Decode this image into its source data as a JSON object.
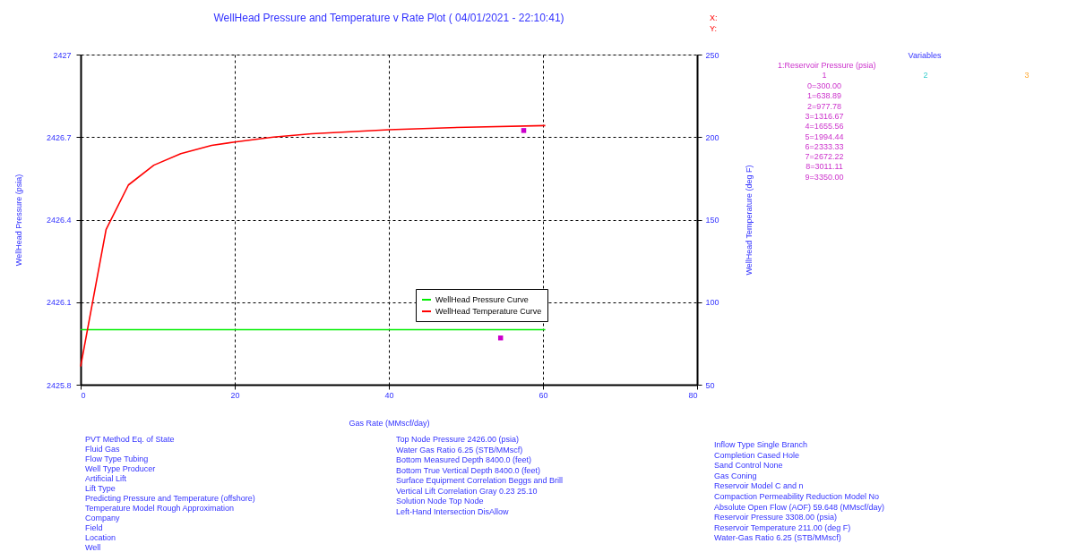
{
  "chart_data": {
    "type": "line",
    "title": "WellHead Pressure and Temperature v Rate Plot ( 04/01/2021 - 22:10:41)",
    "xlabel": "Gas Rate  (MMscf/day)",
    "ylabel": "WellHead Pressure  (psia)",
    "y2label": "WellHead Temperature  (deg F)",
    "xlim": [
      0,
      80
    ],
    "xticks": [
      0,
      20,
      40,
      60,
      80
    ],
    "ylim": [
      2425.8,
      2427
    ],
    "yticks": [
      2425.8,
      2426.1,
      2426.4,
      2426.7,
      2427
    ],
    "y2lim": [
      50,
      250
    ],
    "y2ticks": [
      50,
      100,
      150,
      200,
      250
    ],
    "grid": true,
    "legend": "bottom right",
    "line_style": "solid",
    "series": [
      {
        "name": "WellHead Pressure Curve",
        "color": "#00ee00",
        "type": "line",
        "x": [
          0,
          60.3
        ],
        "values": [
          2426.0,
          2426.0
        ]
      },
      {
        "name": "WellHead Temperature Curve",
        "color": "#ff0000",
        "type": "line",
        "axis": "y2",
        "x": [
          0,
          3.3,
          6.2,
          9.5,
          13,
          17,
          20,
          25,
          30,
          40,
          50,
          60.3
        ],
        "values": [
          61,
          144,
          171,
          183,
          190,
          195,
          197,
          200,
          202,
          204.5,
          206,
          207
        ]
      },
      {
        "color": "#cc00cc",
        "type": "scatter",
        "marker": "square",
        "x": [
          54.5
        ],
        "values": [
          2425.97
        ]
      },
      {
        "color": "#cc00cc",
        "type": "scatter",
        "marker": "square",
        "axis": "y2",
        "x": [
          57.5
        ],
        "values": [
          204
        ]
      }
    ],
    "annotations": [
      "X:",
      "Y:",
      "Variables",
      "1:Reservoir Pressure (psia)",
      "1",
      "2",
      "3",
      "0=300.00",
      "1=638.89",
      "2=977.78",
      "3=1316.67",
      "4=1655.56",
      "5=1994.44",
      "6=2333.33",
      "7=2672.22",
      "8=3011.11",
      "9=3350.00",
      "PVT Method Eq. of State",
      "Fluid Gas",
      "Flow Type Tubing",
      "Well Type Producer",
      "Artificial Lift",
      "Lift Type",
      "Predicting Pressure and Temperature (offshore)",
      "Temperature Model Rough Approximation",
      "Company",
      "Field",
      "Location",
      "Well",
      "Top Node Pressure 2426.00 (psia)",
      "Water Gas Ratio 6.25 (STB/MMscf)",
      "Bottom Measured Depth 8400.0 (feet)",
      "Bottom True Vertical Depth 8400.0 (feet)",
      "Surface Equipment Correlation Beggs and Brill",
      "Vertical Lift Correlation Gray 0.23 25.10",
      "Solution Node Top Node",
      "Left-Hand Intersection DisAllow",
      "Inflow Type Single Branch",
      "Completion Cased Hole",
      "Sand Control None",
      "Gas Coning",
      "Reservoir Model C and n",
      "Compaction Permeability Reduction Model No",
      "Absolute Open Flow (AOF) 59.648 (MMscf/day)",
      "Reservoir Pressure 3308.00 (psia)",
      "Reservoir Temperature 211.00 (deg F)",
      "Water-Gas Ratio 6.25 (STB/MMscf)"
    ]
  }
}
